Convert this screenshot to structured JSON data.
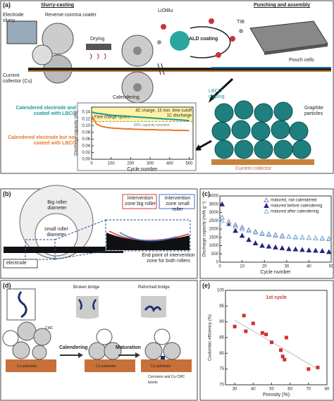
{
  "panel_a": {
    "label": "(a)",
    "slurry_casting": "Slurry-casting",
    "electrode_slurry": "Electrode slurry",
    "coater": "Reverse-comma coater",
    "drying": "Drying",
    "current_collector_cu": "Current collector (Cu)",
    "calendering": "Calendering",
    "liotbu": "LiOtBu",
    "ald_coating": "ALD coating",
    "tib": "TIB",
    "punching": "Punching and assembly",
    "pouch_cells": "Pouch cells",
    "lbco_coating": "LBCO coating",
    "graphite_particles": "Graphite particles",
    "current_collector": "Current collector"
  },
  "panel_b": {
    "label": "(b)",
    "big_roller": "Big roller diameter",
    "small_roller": "small roller diameter",
    "electrode": "electrode",
    "zone_big": "Intervention zone big roller",
    "zone_small": "Intervention zone small roller",
    "end_point": "End point of intervention zone for both rollers"
  },
  "panel_c": {
    "label": "(c)"
  },
  "panel_d": {
    "label": "(d)",
    "broken_bridge": "Broken bridge",
    "reformed_bridge": "Reformed bridge",
    "calendering": "Calendering",
    "maturation": "Maturation",
    "substrate_1": "Cu substrate",
    "substrate_2": "Cu substrate",
    "substrate_3": "Cu substrate",
    "cmc": "CMC",
    "corrosion": "Corrosion and Cu-CMC bonds"
  },
  "panel_e": {
    "label": "(e)"
  },
  "chart_data": [
    {
      "type": "line",
      "x_label": "Cycle number",
      "y_label": "Discharge capacity (Ah)",
      "annotations": [
        "Fast-charge cycles",
        "4C charge, 15 min. time cutoff",
        "1C discharge"
      ],
      "reference_line": {
        "value": 0.112,
        "label": "80% capacity retention"
      },
      "shade_color": "#fff3a6",
      "x": [
        0,
        25,
        50,
        75,
        100,
        125,
        150,
        175,
        200,
        225,
        250,
        275,
        300,
        325,
        350,
        375,
        400,
        425,
        450,
        475,
        500
      ],
      "series": [
        {
          "name": "Calendered electrode and coated with LBCO",
          "color": "#1f9a96",
          "values": [
            0.14,
            0.137,
            0.135,
            0.133,
            0.131,
            0.13,
            0.129,
            0.128,
            0.127,
            0.126,
            0.125,
            0.124,
            0.123,
            0.122,
            0.121,
            0.12,
            0.119,
            0.118,
            0.117,
            0.116,
            0.115
          ]
        },
        {
          "name": "Calendered electrode but not coated with LBCO",
          "color": "#e8782a",
          "values": [
            0.13,
            0.105,
            0.098,
            0.095,
            0.093,
            0.092,
            0.091,
            0.09,
            0.09,
            0.089,
            0.089,
            0.088,
            0.088,
            0.088,
            0.087,
            0.087,
            0.087,
            0.086,
            0.086,
            0.086,
            0.085
          ]
        }
      ],
      "xlim": [
        0,
        520
      ],
      "xticks": [
        0,
        100,
        200,
        300,
        400,
        500
      ],
      "ylim": [
        0,
        0.155
      ],
      "yticks": [
        {
          "value": 0,
          "label": "0.00"
        },
        {
          "value": 0.02,
          "label": "0.02"
        },
        {
          "value": 0.04,
          "label": "0.04"
        },
        {
          "value": 0.06,
          "label": "0.06"
        },
        {
          "value": 0.08,
          "label": "0.08"
        },
        {
          "value": 0.1,
          "label": "0.10"
        },
        {
          "value": 0.12,
          "label": "0.12"
        },
        {
          "value": 0.14,
          "label": "0.14"
        }
      ]
    },
    {
      "type": "scatter",
      "x_label": "Cycle number",
      "y_label": "Discharge capacity (mAh g⁻¹)",
      "legend": "upper right",
      "x": [
        1,
        4,
        7,
        10,
        13,
        16,
        19,
        22,
        25,
        28,
        31,
        34,
        37,
        40,
        43,
        46,
        49
      ],
      "series": [
        {
          "name": "matured, not-calendered",
          "color": "#8a8aa8",
          "marker": "triangle-open",
          "values": [
            2700,
            2450,
            2250,
            2100,
            1950,
            1850,
            1750,
            1700,
            1650,
            1600,
            1550,
            1520,
            1500,
            1480,
            1450,
            1430,
            1400
          ]
        },
        {
          "name": "matured before calendering",
          "color": "#25267e",
          "marker": "triangle",
          "values": [
            3500,
            2300,
            1900,
            1600,
            1350,
            1150,
            1000,
            950,
            900,
            850,
            800,
            780,
            750,
            720,
            700,
            680,
            620
          ]
        },
        {
          "name": "matured after calendering",
          "color": "#7fb6dc",
          "marker": "triangle-open",
          "values": [
            2500,
            2300,
            2150,
            2000,
            1900,
            1800,
            1700,
            1650,
            1600,
            1550,
            1550,
            1500,
            1500,
            1480,
            1460,
            1450,
            1430
          ]
        }
      ],
      "xlim": [
        0,
        50
      ],
      "xticks": [
        0,
        10,
        20,
        30,
        40,
        50
      ],
      "ylim": [
        0,
        4000
      ],
      "yticks": [
        0,
        500,
        1000,
        1500,
        2000,
        2500,
        3000,
        3500,
        4000
      ]
    },
    {
      "type": "scatter",
      "x_label": "Porosity (%)",
      "y_label": "Coulombic efficiency (%)",
      "annotation": "1st cycle",
      "x": [
        30,
        35,
        36,
        40,
        45,
        47,
        50,
        55,
        56,
        57,
        58,
        70,
        75
      ],
      "series": [
        {
          "color": "#d03030",
          "marker": "square",
          "values": [
            88.5,
            92,
            87,
            89.5,
            86.5,
            86,
            83.5,
            81,
            79,
            78,
            85,
            75,
            75.5
          ]
        }
      ],
      "fit_line": {
        "x": [
          30,
          75
        ],
        "values": [
          90.5,
          75
        ],
        "color": "#bbbbbb"
      },
      "xlim": [
        25,
        80
      ],
      "xticks": [
        30,
        40,
        50,
        60,
        70,
        80
      ],
      "ylim": [
        70,
        100
      ],
      "yticks": [
        70,
        75,
        80,
        85,
        90,
        95,
        100
      ]
    }
  ]
}
